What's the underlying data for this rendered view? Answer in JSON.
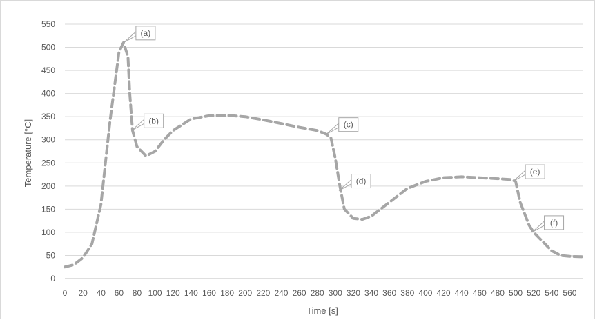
{
  "chart_data": {
    "type": "line",
    "title": "",
    "xlabel": "Time [s]",
    "ylabel": "Temperature [°C]",
    "xlim": [
      0,
      575
    ],
    "ylim": [
      0,
      550
    ],
    "x_ticks": [
      0,
      20,
      40,
      60,
      80,
      100,
      120,
      140,
      160,
      180,
      200,
      220,
      240,
      260,
      280,
      300,
      320,
      340,
      360,
      380,
      400,
      420,
      440,
      460,
      480,
      500,
      520,
      540,
      560
    ],
    "y_ticks": [
      0,
      50,
      100,
      150,
      200,
      250,
      300,
      350,
      400,
      450,
      500,
      550
    ],
    "grid": "horizontal",
    "series": [
      {
        "color": "#a6a6a6",
        "line_style": "dashed",
        "x": [
          0,
          10,
          20,
          30,
          40,
          50,
          60,
          65,
          70,
          72,
          75,
          80,
          90,
          100,
          110,
          120,
          140,
          160,
          180,
          200,
          220,
          240,
          260,
          280,
          290,
          295,
          300,
          305,
          310,
          320,
          330,
          340,
          360,
          380,
          400,
          420,
          440,
          460,
          480,
          495,
          500,
          505,
          510,
          515,
          520,
          530,
          540,
          550,
          560,
          575
        ],
        "y": [
          25,
          30,
          45,
          75,
          160,
          340,
          490,
          510,
          480,
          400,
          320,
          285,
          265,
          275,
          300,
          320,
          345,
          352,
          353,
          350,
          343,
          335,
          327,
          320,
          312,
          305,
          260,
          200,
          150,
          130,
          128,
          135,
          165,
          195,
          210,
          218,
          220,
          218,
          216,
          214,
          210,
          165,
          140,
          115,
          100,
          80,
          60,
          50,
          48,
          47
        ]
      }
    ],
    "annotations": [
      {
        "label": "(a)",
        "x": 65,
        "y": 510
      },
      {
        "label": "(b)",
        "x": 74,
        "y": 320
      },
      {
        "label": "(c)",
        "x": 290,
        "y": 312
      },
      {
        "label": "(d)",
        "x": 304,
        "y": 190
      },
      {
        "label": "(e)",
        "x": 497,
        "y": 210
      },
      {
        "label": "(f)",
        "x": 518,
        "y": 100
      }
    ]
  }
}
